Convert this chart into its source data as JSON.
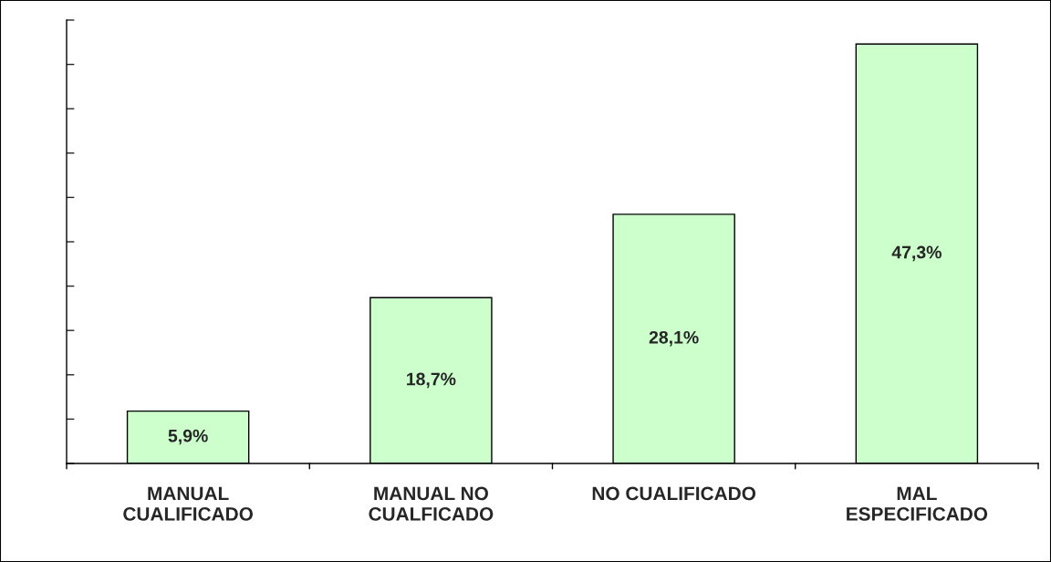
{
  "chart_data": {
    "type": "bar",
    "categories": [
      "MANUAL\nCUALIFICADO",
      "MANUAL NO\nCUALFICADO",
      "NO CUALIFICADO",
      "MAL\nESPECIFICADO"
    ],
    "values": [
      5.9,
      18.7,
      28.1,
      47.3
    ],
    "value_labels": [
      "5,9%",
      "18,7%",
      "28,1%",
      "47,3%"
    ],
    "color": "#ccffcc",
    "ylim": [
      0,
      50
    ],
    "yticks": [
      {
        "value": 0,
        "label": null
      },
      {
        "value": 5,
        "label": null
      },
      {
        "value": 10,
        "label": null
      },
      {
        "value": 15,
        "label": null
      },
      {
        "value": 20,
        "label": null
      },
      {
        "value": 25,
        "label": null
      },
      {
        "value": 30,
        "label": null
      },
      {
        "value": 35,
        "label": null
      },
      {
        "value": 40,
        "label": null
      },
      {
        "value": 45,
        "label": null
      },
      {
        "value": 50,
        "label": null
      }
    ],
    "tick_labels": "x",
    "grid": false,
    "legend": false
  }
}
